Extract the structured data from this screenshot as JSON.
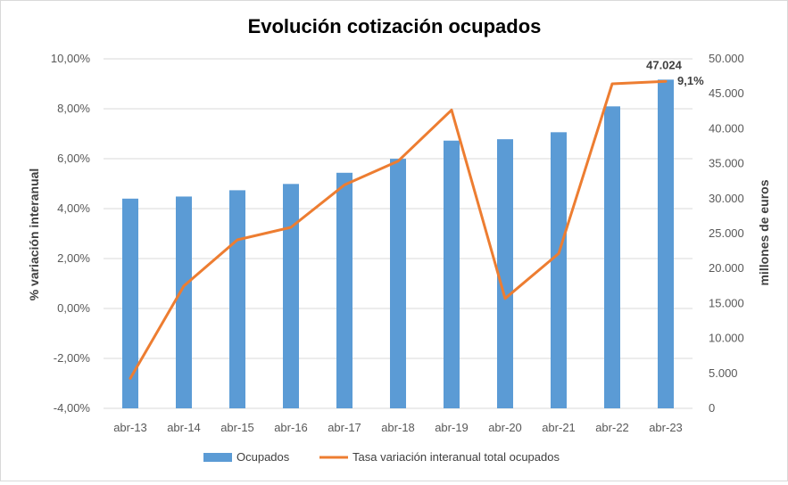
{
  "chart_data": {
    "type": "bar",
    "title": "Evolución cotización ocupados",
    "categories": [
      "abr-13",
      "abr-14",
      "abr-15",
      "abr-16",
      "abr-17",
      "abr-18",
      "abr-19",
      "abr-20",
      "abr-21",
      "abr-22",
      "abr-23"
    ],
    "series": [
      {
        "name": "Ocupados",
        "type": "bar",
        "axis": "right",
        "color": "#5b9bd5",
        "values": [
          30000,
          30300,
          31200,
          32100,
          33700,
          35700,
          38300,
          38500,
          39500,
          43200,
          47024
        ]
      },
      {
        "name": "Tasa variación interanual total ocupados",
        "type": "line",
        "axis": "left",
        "color": "#ed7d31",
        "values": [
          -2.8,
          0.9,
          2.75,
          3.25,
          4.95,
          5.9,
          7.95,
          0.4,
          2.2,
          9.0,
          9.1
        ]
      }
    ],
    "ylabel_left": "% variación interanual",
    "ylabel_right": "millones de euros",
    "y_left": {
      "min": -4,
      "max": 10,
      "ticks": [
        "-4,00%",
        "-2,00%",
        "0,00%",
        "2,00%",
        "4,00%",
        "6,00%",
        "8,00%",
        "10,00%"
      ]
    },
    "y_right": {
      "min": 0,
      "max": 50000,
      "ticks": [
        "0",
        "5.000",
        "10.000",
        "15.000",
        "20.000",
        "25.000",
        "30.000",
        "35.000",
        "40.000",
        "45.000",
        "50.000"
      ]
    },
    "data_labels": {
      "bar_last": "47.024",
      "line_last": "9,1%"
    },
    "grid": true,
    "legend": "bottom"
  }
}
